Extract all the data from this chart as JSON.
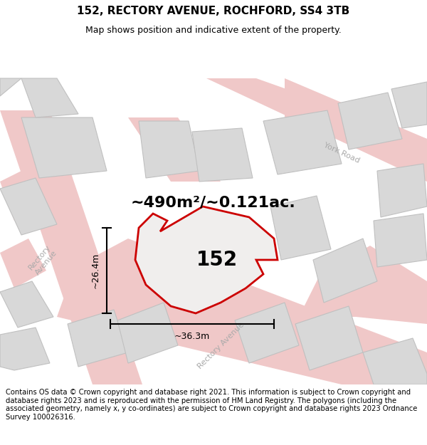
{
  "title_line1": "152, RECTORY AVENUE, ROCHFORD, SS4 3TB",
  "title_line2": "Map shows position and indicative extent of the property.",
  "footer_text": "Contains OS data © Crown copyright and database right 2021. This information is subject to Crown copyright and database rights 2023 and is reproduced with the permission of HM Land Registry. The polygons (including the associated geometry, namely x, y co-ordinates) are subject to Crown copyright and database rights 2023 Ordnance Survey 100026316.",
  "area_label": "~490m²/~0.121ac.",
  "property_number": "152",
  "width_label": "~36.3m",
  "height_label": "~26.4m",
  "map_bg": "#eeecec",
  "road_color": "#f0c8c8",
  "block_color": "#d8d8d8",
  "block_edge_color": "#c0c0c0",
  "property_fill": "#f0eeed",
  "property_edge": "#cc0000",
  "title_fontsize": 11,
  "subtitle_fontsize": 9,
  "footer_fontsize": 7.2,
  "area_fontsize": 16,
  "number_fontsize": 20,
  "dim_fontsize": 9,
  "road_label_fontsize": 8
}
